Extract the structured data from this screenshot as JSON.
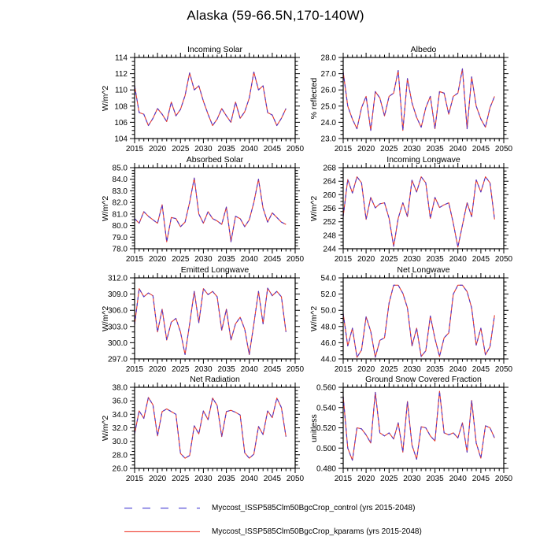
{
  "title": "Alaska (59-66.5N,170-140W)",
  "legend": {
    "items": [
      {
        "label": "Myccost_ISSP585Clm50BgcCrop_control (yrs 2015-2048)",
        "style": "dashed",
        "color": "#5a52d8"
      },
      {
        "label": "Myccost_ISSP585Clm50BgcCrop_kparams (yrs 2015-2048)",
        "style": "solid",
        "color": "#f0564a"
      }
    ]
  },
  "x_axis": {
    "years_start": 2015,
    "years_end": 2048,
    "xlim": [
      2015,
      2050
    ],
    "xtick_labels": [
      "2015",
      "2020",
      "2025",
      "2030",
      "2035",
      "2040",
      "2045",
      "2050"
    ]
  },
  "chart_data": [
    {
      "type": "line",
      "title": "Incoming Solar",
      "ylabel": "W/m^2",
      "ylim": [
        104,
        114
      ],
      "ytick_labels": [
        "104",
        "106",
        "108",
        "110",
        "112",
        "114"
      ],
      "y_minor_divisions": 4,
      "series": [
        {
          "name": "Myccost_ISSP585Clm50BgcCrop_control",
          "style": "dashed",
          "color": "#4a38d0",
          "values": [
            110.5,
            107.2,
            107.0,
            105.6,
            106.5,
            107.7,
            107.0,
            106.1,
            108.5,
            106.8,
            107.6,
            109.3,
            112.1,
            110.0,
            110.5,
            108.6,
            107.0,
            105.6,
            106.4,
            107.7,
            106.8,
            106.0,
            108.5,
            106.5,
            107.3,
            109.0,
            112.2,
            110.0,
            110.5,
            107.2,
            106.9,
            105.6,
            106.5,
            107.7
          ]
        },
        {
          "name": "Myccost_ISSP585Clm50BgcCrop_kparams",
          "style": "solid",
          "color": "#e6392b",
          "values": [
            110.5,
            107.2,
            107.0,
            105.6,
            106.5,
            107.7,
            107.0,
            106.1,
            108.5,
            106.8,
            107.6,
            109.3,
            112.1,
            110.0,
            110.5,
            108.6,
            107.0,
            105.6,
            106.4,
            107.7,
            106.8,
            106.0,
            108.5,
            106.5,
            107.3,
            109.0,
            112.2,
            110.0,
            110.5,
            107.2,
            106.9,
            105.6,
            106.5,
            107.7
          ]
        }
      ]
    },
    {
      "type": "line",
      "title": "Albedo",
      "ylabel": "% reflected",
      "ylim": [
        23.0,
        28.0
      ],
      "ytick_labels": [
        "23.0",
        "24.0",
        "25.0",
        "26.0",
        "27.0",
        "28.0"
      ],
      "y_minor_divisions": 4,
      "series": [
        {
          "name": "Myccost_ISSP585Clm50BgcCrop_control",
          "style": "dashed",
          "color": "#4a38d0",
          "values": [
            27.1,
            25.0,
            24.2,
            23.6,
            24.9,
            25.6,
            23.5,
            25.9,
            25.5,
            24.4,
            25.6,
            25.8,
            27.2,
            23.5,
            26.7,
            25.2,
            24.3,
            23.7,
            24.9,
            25.6,
            23.6,
            25.9,
            25.8,
            24.5,
            25.6,
            25.8,
            27.3,
            23.6,
            26.8,
            25.0,
            24.2,
            23.7,
            24.9,
            25.6
          ]
        },
        {
          "name": "Myccost_ISSP585Clm50BgcCrop_kparams",
          "style": "solid",
          "color": "#e6392b",
          "values": [
            27.1,
            25.0,
            24.2,
            23.6,
            24.9,
            25.6,
            23.5,
            25.9,
            25.5,
            24.4,
            25.6,
            25.8,
            27.2,
            23.5,
            26.7,
            25.2,
            24.3,
            23.7,
            24.9,
            25.6,
            23.6,
            25.9,
            25.8,
            24.5,
            25.6,
            25.8,
            27.3,
            23.6,
            26.8,
            25.0,
            24.2,
            23.7,
            24.9,
            25.6
          ]
        }
      ]
    },
    {
      "type": "line",
      "title": "Absorbed Solar",
      "ylabel": "W/m^2",
      "ylim": [
        78.0,
        85.0
      ],
      "ytick_labels": [
        "78.0",
        "79.0",
        "80.0",
        "81.0",
        "82.0",
        "83.0",
        "84.0",
        "85.0"
      ],
      "y_minor_divisions": 4,
      "series": [
        {
          "name": "Myccost_ISSP585Clm50BgcCrop_control",
          "style": "dashed",
          "color": "#4a38d0",
          "values": [
            80.6,
            80.2,
            81.2,
            80.8,
            80.5,
            80.2,
            81.8,
            78.6,
            80.7,
            80.6,
            79.9,
            80.3,
            82.0,
            84.1,
            81.0,
            80.2,
            81.2,
            80.6,
            80.4,
            80.1,
            81.6,
            78.6,
            80.8,
            80.6,
            79.9,
            80.5,
            82.0,
            84.0,
            81.5,
            80.3,
            81.1,
            80.7,
            80.3,
            80.1
          ]
        },
        {
          "name": "Myccost_ISSP585Clm50BgcCrop_kparams",
          "style": "solid",
          "color": "#e6392b",
          "values": [
            80.6,
            80.2,
            81.2,
            80.8,
            80.5,
            80.2,
            81.8,
            78.6,
            80.7,
            80.6,
            79.9,
            80.3,
            82.0,
            84.1,
            81.0,
            80.2,
            81.2,
            80.6,
            80.4,
            80.1,
            81.6,
            78.6,
            80.8,
            80.6,
            79.9,
            80.5,
            82.0,
            84.0,
            81.5,
            80.3,
            81.1,
            80.7,
            80.3,
            80.1
          ]
        }
      ]
    },
    {
      "type": "line",
      "title": "Incoming Longwave",
      "ylabel": "W/m^2",
      "ylim": [
        244,
        268
      ],
      "ytick_labels": [
        "244",
        "248",
        "252",
        "256",
        "260",
        "264",
        "268"
      ],
      "y_minor_divisions": 4,
      "series": [
        {
          "name": "Myccost_ISSP585Clm50BgcCrop_control",
          "style": "dashed",
          "color": "#4a38d0",
          "values": [
            253.5,
            264.5,
            260.5,
            265.3,
            263.5,
            252.7,
            259.2,
            256.1,
            257.3,
            257.6,
            253.0,
            244.7,
            253.0,
            257.6,
            253.5,
            264.3,
            260.8,
            265.3,
            263.5,
            253.0,
            259.2,
            256.2,
            257.0,
            257.6,
            251.5,
            244.5,
            251.0,
            257.6,
            253.5,
            264.4,
            260.8,
            265.3,
            263.5,
            252.7
          ]
        },
        {
          "name": "Myccost_ISSP585Clm50BgcCrop_kparams",
          "style": "solid",
          "color": "#e6392b",
          "values": [
            253.5,
            264.5,
            260.5,
            265.3,
            263.5,
            252.7,
            259.2,
            256.1,
            257.3,
            257.6,
            253.0,
            244.7,
            253.0,
            257.6,
            253.5,
            264.3,
            260.8,
            265.3,
            263.5,
            253.0,
            259.2,
            256.2,
            257.0,
            257.6,
            251.5,
            244.5,
            251.0,
            257.6,
            253.5,
            264.4,
            260.8,
            265.3,
            263.5,
            252.7
          ]
        }
      ]
    },
    {
      "type": "line",
      "title": "Emitted Longwave",
      "ylabel": "W/m^2",
      "ylim": [
        297.0,
        312.0
      ],
      "ytick_labels": [
        "297.0",
        "300.0",
        "303.0",
        "306.0",
        "309.0",
        "312.0"
      ],
      "y_minor_divisions": 3,
      "series": [
        {
          "name": "Myccost_ISSP585Clm50BgcCrop_control",
          "style": "dashed",
          "color": "#4a38d0",
          "values": [
            303.3,
            310.0,
            308.5,
            309.2,
            308.7,
            302.0,
            306.2,
            300.5,
            303.8,
            304.5,
            302.0,
            297.8,
            303.5,
            309.5,
            303.7,
            310.0,
            308.9,
            309.5,
            308.5,
            302.3,
            306.2,
            300.5,
            303.5,
            304.7,
            302.5,
            297.8,
            303.5,
            309.5,
            303.5,
            310.1,
            308.7,
            309.5,
            308.5,
            302.0
          ]
        },
        {
          "name": "Myccost_ISSP585Clm50BgcCrop_kparams",
          "style": "solid",
          "color": "#e6392b",
          "values": [
            303.3,
            310.0,
            308.5,
            309.2,
            308.7,
            302.0,
            306.2,
            300.5,
            303.8,
            304.5,
            302.0,
            297.8,
            303.5,
            309.5,
            303.7,
            310.0,
            308.9,
            309.5,
            308.5,
            302.3,
            306.2,
            300.5,
            303.5,
            304.7,
            302.5,
            297.8,
            303.5,
            309.5,
            303.5,
            310.1,
            308.7,
            309.5,
            308.5,
            302.0
          ]
        }
      ]
    },
    {
      "type": "line",
      "title": "Net Longwave",
      "ylabel": "W/m^2",
      "ylim": [
        44.0,
        54.0
      ],
      "ytick_labels": [
        "44.0",
        "46.0",
        "48.0",
        "50.0",
        "52.0",
        "54.0"
      ],
      "y_minor_divisions": 4,
      "series": [
        {
          "name": "Myccost_ISSP585Clm50BgcCrop_control",
          "style": "dashed",
          "color": "#4a38d0",
          "values": [
            49.6,
            45.6,
            47.8,
            44.2,
            45.1,
            49.2,
            47.4,
            44.2,
            46.3,
            46.6,
            50.9,
            53.1,
            53.1,
            52.1,
            50.3,
            45.6,
            47.8,
            44.3,
            45.0,
            49.3,
            46.5,
            44.3,
            46.6,
            47.2,
            52.0,
            53.1,
            53.1,
            52.3,
            50.3,
            45.7,
            47.8,
            44.5,
            45.5,
            49.4
          ]
        },
        {
          "name": "Myccost_ISSP585Clm50BgcCrop_kparams",
          "style": "solid",
          "color": "#e6392b",
          "values": [
            49.6,
            45.6,
            47.8,
            44.2,
            45.1,
            49.2,
            47.4,
            44.2,
            46.3,
            46.6,
            50.9,
            53.1,
            53.1,
            52.1,
            50.3,
            45.6,
            47.8,
            44.3,
            45.0,
            49.3,
            46.5,
            44.3,
            46.6,
            47.2,
            52.0,
            53.1,
            53.1,
            52.3,
            50.3,
            45.7,
            47.8,
            44.5,
            45.5,
            49.4
          ]
        }
      ]
    },
    {
      "type": "line",
      "title": "Net Radiation",
      "ylabel": "W/m^2",
      "ylim": [
        26.0,
        38.0
      ],
      "ytick_labels": [
        "26.0",
        "28.0",
        "30.0",
        "32.0",
        "34.0",
        "36.0",
        "38.0"
      ],
      "y_minor_divisions": 4,
      "series": [
        {
          "name": "Myccost_ISSP585Clm50BgcCrop_control",
          "style": "dashed",
          "color": "#4a38d0",
          "values": [
            31.1,
            34.5,
            33.4,
            36.5,
            35.4,
            30.8,
            34.4,
            34.8,
            34.4,
            34.0,
            28.2,
            27.5,
            27.9,
            32.3,
            31.1,
            34.5,
            33.2,
            36.4,
            35.3,
            30.7,
            34.4,
            34.6,
            34.3,
            33.9,
            28.3,
            27.5,
            28.1,
            32.2,
            31.0,
            34.5,
            33.5,
            36.4,
            35.0,
            30.7
          ]
        },
        {
          "name": "Myccost_ISSP585Clm50BgcCrop_kparams",
          "style": "solid",
          "color": "#e6392b",
          "values": [
            31.1,
            34.5,
            33.4,
            36.5,
            35.4,
            30.8,
            34.4,
            34.8,
            34.4,
            34.0,
            28.2,
            27.5,
            27.9,
            32.3,
            31.1,
            34.5,
            33.2,
            36.4,
            35.3,
            30.7,
            34.4,
            34.6,
            34.3,
            33.9,
            28.3,
            27.5,
            28.1,
            32.2,
            31.0,
            34.5,
            33.5,
            36.4,
            35.0,
            30.7
          ]
        }
      ]
    },
    {
      "type": "line",
      "title": "Ground Snow Covered Fraction",
      "ylabel": "unitless",
      "ylim": [
        0.48,
        0.56
      ],
      "ytick_labels": [
        "0.480",
        "0.500",
        "0.520",
        "0.540",
        "0.560"
      ],
      "y_minor_divisions": 4,
      "series": [
        {
          "name": "Myccost_ISSP585Clm50BgcCrop_control",
          "style": "dashed",
          "color": "#4a38d0",
          "values": [
            0.551,
            0.5,
            0.488,
            0.52,
            0.519,
            0.513,
            0.505,
            0.555,
            0.515,
            0.512,
            0.515,
            0.509,
            0.525,
            0.496,
            0.546,
            0.503,
            0.489,
            0.521,
            0.52,
            0.512,
            0.507,
            0.556,
            0.515,
            0.513,
            0.515,
            0.51,
            0.525,
            0.496,
            0.547,
            0.505,
            0.49,
            0.522,
            0.52,
            0.51
          ]
        },
        {
          "name": "Myccost_ISSP585Clm50BgcCrop_kparams",
          "style": "solid",
          "color": "#e6392b",
          "values": [
            0.551,
            0.5,
            0.488,
            0.52,
            0.519,
            0.513,
            0.505,
            0.555,
            0.515,
            0.512,
            0.515,
            0.509,
            0.525,
            0.496,
            0.546,
            0.503,
            0.489,
            0.521,
            0.52,
            0.512,
            0.507,
            0.556,
            0.515,
            0.513,
            0.515,
            0.51,
            0.525,
            0.496,
            0.547,
            0.505,
            0.49,
            0.522,
            0.52,
            0.51
          ]
        }
      ]
    }
  ]
}
